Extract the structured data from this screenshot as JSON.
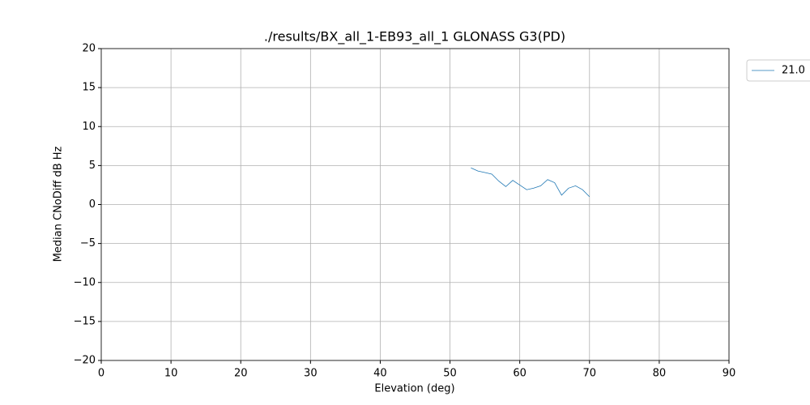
{
  "chart_data": {
    "type": "line",
    "title": "./results/BX_all_1-EB93_all_1 GLONASS G3(PD)",
    "xlabel": "Elevation (deg)",
    "ylabel": "Median CNoDiff dB Hz",
    "x": [
      53,
      54,
      55,
      56,
      57,
      58,
      59,
      60,
      61,
      62,
      63,
      64,
      65,
      66,
      67,
      68,
      69,
      70
    ],
    "series": [
      {
        "name": "21.0",
        "color": "#1f77b4",
        "values": [
          4.7,
          4.3,
          4.1,
          3.9,
          3.0,
          2.3,
          3.1,
          2.5,
          1.9,
          2.1,
          2.4,
          3.2,
          2.8,
          1.2,
          2.1,
          2.4,
          1.9,
          1.0
        ]
      }
    ],
    "xlim": [
      0,
      90
    ],
    "xticks": [
      0,
      10,
      20,
      30,
      40,
      50,
      60,
      70,
      80,
      90
    ],
    "ylim": [
      -20,
      20
    ],
    "yticks": [
      {
        "value": -20,
        "label": "−20"
      },
      {
        "value": -15,
        "label": "−15"
      },
      {
        "value": -10,
        "label": "−10"
      },
      {
        "value": -5,
        "label": "−5"
      },
      0,
      5,
      10,
      15,
      20
    ],
    "grid": true,
    "legend": "outside-right"
  }
}
